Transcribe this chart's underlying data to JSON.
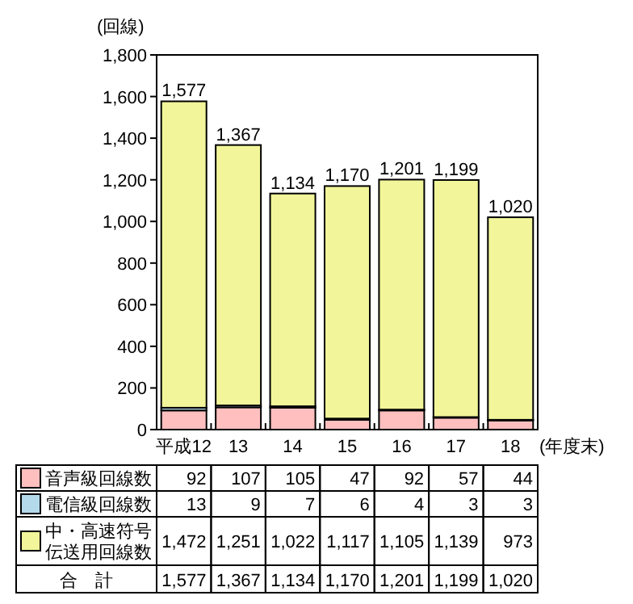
{
  "chart_data": {
    "type": "bar",
    "stacked": true,
    "ylabel": "(回線)",
    "xlabel": "(年度末)",
    "categories": [
      "平成12",
      "13",
      "14",
      "15",
      "16",
      "17",
      "18"
    ],
    "series": [
      {
        "name": "音声級回線数",
        "color": "#ffbfbf",
        "values": [
          92,
          107,
          105,
          47,
          92,
          57,
          44
        ],
        "value_labels": [
          "92",
          "107",
          "105",
          "47",
          "92",
          "57",
          "44"
        ]
      },
      {
        "name": "電信級回線数",
        "color": "#b3d9ea",
        "values": [
          13,
          9,
          7,
          6,
          4,
          3,
          3
        ],
        "value_labels": [
          "13",
          "9",
          "7",
          "6",
          "4",
          "3",
          "3"
        ]
      },
      {
        "name": "中・高速符号伝送用回線数",
        "color": "#f2f59a",
        "values": [
          1472,
          1251,
          1022,
          1117,
          1105,
          1139,
          973
        ],
        "value_labels": [
          "1,472",
          "1,251",
          "1,022",
          "1,117",
          "1,105",
          "1,139",
          "973"
        ]
      }
    ],
    "totals": [
      "1,577",
      "1,367",
      "1,134",
      "1,170",
      "1,201",
      "1,199",
      "1,020"
    ],
    "ylim": [
      0,
      1800
    ],
    "yticks": [
      {
        "value": 0,
        "label": "0"
      },
      {
        "value": 200,
        "label": "200"
      },
      {
        "value": 400,
        "label": "400"
      },
      {
        "value": 600,
        "label": "600"
      },
      {
        "value": 800,
        "label": "800"
      },
      {
        "value": 1000,
        "label": "1,000"
      },
      {
        "value": 1200,
        "label": "1,200"
      },
      {
        "value": 1400,
        "label": "1,400"
      },
      {
        "value": 1600,
        "label": "1,600"
      },
      {
        "value": 1800,
        "label": "1,800"
      }
    ],
    "legend": "bottom",
    "grid": false,
    "annotations": [
      "合　計"
    ]
  }
}
